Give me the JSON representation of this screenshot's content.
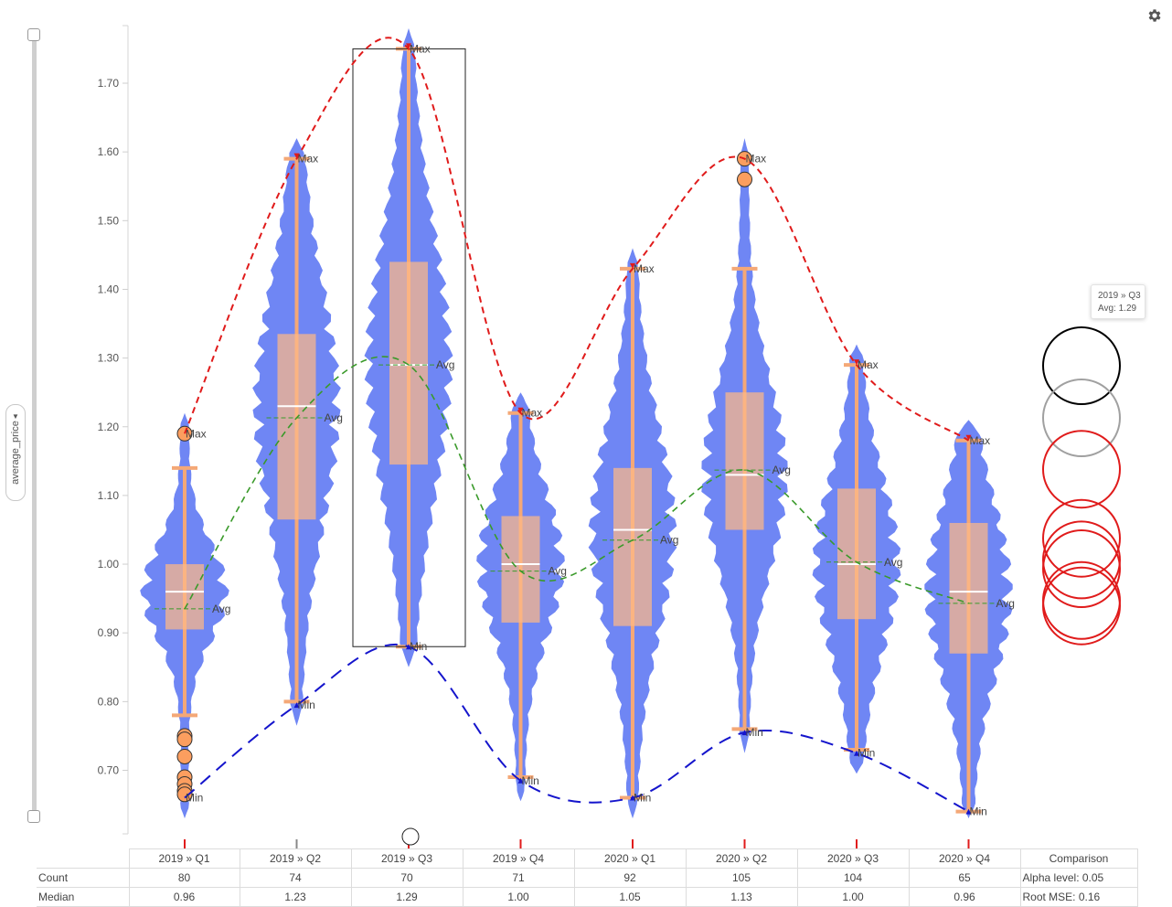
{
  "axis_label": "average_price",
  "tooltip": {
    "title": "2019 » Q3",
    "value": "Avg: 1.29"
  },
  "labels": {
    "max": "Max",
    "min": "Min",
    "avg": "Avg"
  },
  "colors": {
    "violin": "#6f86f4",
    "box": "#fdb987",
    "whisker": "#f4a877",
    "median": "#ffffff",
    "max_line": "#e01b1b",
    "avg_line": "#3a9a2a",
    "min_line": "#1515cc",
    "outlier": "#fc9e5f",
    "selection": "#222222"
  },
  "chart_data": {
    "type": "violin-box",
    "y_ticks": [
      "0.70",
      "0.80",
      "0.90",
      "1.00",
      "1.10",
      "1.20",
      "1.30",
      "1.40",
      "1.50",
      "1.60",
      "1.70"
    ],
    "ylim": [
      0.63,
      1.795
    ],
    "categories": [
      "2019 » Q1",
      "2019 » Q2",
      "2019 » Q3",
      "2019 » Q4",
      "2020 » Q1",
      "2020 » Q2",
      "2020 » Q3",
      "2020 » Q4"
    ],
    "selected_category": "2019 » Q3",
    "groups": [
      {
        "category": "2019 » Q1",
        "min": 0.66,
        "q1": 0.905,
        "median": 0.96,
        "q3": 1.0,
        "max": 1.19,
        "mean": 0.935,
        "whisker_low": 0.78,
        "whisker_high": 1.14,
        "outliers": [
          1.19,
          0.75,
          0.745,
          0.72,
          0.69,
          0.68,
          0.67,
          0.665
        ],
        "count": "80",
        "median_text": "0.96"
      },
      {
        "category": "2019 » Q2",
        "min": 0.795,
        "q1": 1.065,
        "median": 1.23,
        "q3": 1.335,
        "max": 1.59,
        "mean": 1.213,
        "whisker_low": 0.8,
        "whisker_high": 1.59,
        "outliers": [],
        "count": "74",
        "median_text": "1.23"
      },
      {
        "category": "2019 » Q3",
        "min": 0.88,
        "q1": 1.145,
        "median": 1.29,
        "q3": 1.44,
        "max": 1.75,
        "mean": 1.29,
        "whisker_low": 0.88,
        "whisker_high": 1.75,
        "outliers": [],
        "count": "70",
        "median_text": "1.29"
      },
      {
        "category": "2019 » Q4",
        "min": 0.685,
        "q1": 0.915,
        "median": 1.0,
        "q3": 1.07,
        "max": 1.22,
        "mean": 0.99,
        "whisker_low": 0.69,
        "whisker_high": 1.22,
        "outliers": [],
        "count": "71",
        "median_text": "1.00"
      },
      {
        "category": "2020 » Q1",
        "min": 0.66,
        "q1": 0.91,
        "median": 1.05,
        "q3": 1.14,
        "max": 1.43,
        "mean": 1.035,
        "whisker_low": 0.66,
        "whisker_high": 1.43,
        "outliers": [],
        "count": "92",
        "median_text": "1.05"
      },
      {
        "category": "2020 » Q2",
        "min": 0.755,
        "q1": 1.05,
        "median": 1.13,
        "q3": 1.25,
        "max": 1.59,
        "mean": 1.137,
        "whisker_low": 0.76,
        "whisker_high": 1.43,
        "outliers": [
          1.59,
          1.56
        ],
        "count": "105",
        "median_text": "1.13"
      },
      {
        "category": "2020 » Q3",
        "min": 0.725,
        "q1": 0.92,
        "median": 1.0,
        "q3": 1.11,
        "max": 1.29,
        "mean": 1.003,
        "whisker_low": 0.73,
        "whisker_high": 1.29,
        "outliers": [],
        "count": "104",
        "median_text": "1.00"
      },
      {
        "category": "2020 » Q4",
        "min": 0.64,
        "q1": 0.87,
        "median": 0.96,
        "q3": 1.06,
        "max": 1.18,
        "mean": 0.943,
        "whisker_low": 0.64,
        "whisker_high": 1.18,
        "outliers": [],
        "count": "65",
        "median_text": "0.96"
      }
    ],
    "comparison_circles": [
      {
        "value": 1.29,
        "color": "#000000"
      },
      {
        "value": 1.213,
        "color": "#a0a0a0"
      },
      {
        "value": 1.137,
        "color": "#e01b1b"
      },
      {
        "value": 1.035,
        "color": "#e01b1b"
      },
      {
        "value": 1.003,
        "color": "#e01b1b"
      },
      {
        "value": 0.99,
        "color": "#e01b1b"
      },
      {
        "value": 0.943,
        "color": "#e01b1b"
      },
      {
        "value": 0.935,
        "color": "#e01b1b"
      }
    ]
  },
  "table": {
    "comparison_header": "Comparison",
    "rows": [
      {
        "label": "Count",
        "key": "count",
        "comparison": "Alpha level: 0.05"
      },
      {
        "label": "Median",
        "key": "median_text",
        "comparison": "Root MSE: 0.16"
      }
    ]
  }
}
